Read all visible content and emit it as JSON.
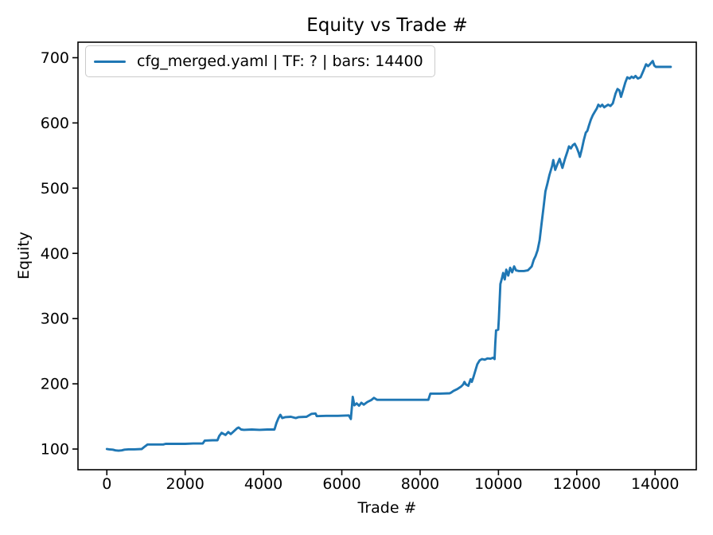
{
  "figure": {
    "background": "#ffffff",
    "axis_color": "#000000",
    "text_color": "#000000"
  },
  "chart_data": {
    "type": "line",
    "title": "Equity vs Trade #",
    "xlabel": "Trade #",
    "ylabel": "Equity",
    "xlim": [
      -737,
      15052
    ],
    "ylim": [
      68.3,
      723.8
    ],
    "xticks": [
      0,
      2000,
      4000,
      6000,
      8000,
      10000,
      12000,
      14000
    ],
    "yticks": [
      100,
      200,
      300,
      400,
      500,
      600,
      700
    ],
    "grid": false,
    "legend_position": "upper-left",
    "series": [
      {
        "name": "cfg_merged.yaml | TF: ? | bars: 14400",
        "color": "#1f77b4",
        "points": [
          [
            0,
            100
          ],
          [
            60,
            99.5
          ],
          [
            150,
            99
          ],
          [
            220,
            98
          ],
          [
            300,
            97.5
          ],
          [
            380,
            98
          ],
          [
            450,
            99
          ],
          [
            550,
            99.5
          ],
          [
            700,
            99.5
          ],
          [
            890,
            100
          ],
          [
            950,
            103
          ],
          [
            1040,
            107
          ],
          [
            1200,
            107
          ],
          [
            1440,
            107
          ],
          [
            1500,
            108
          ],
          [
            1700,
            108
          ],
          [
            2000,
            108
          ],
          [
            2200,
            108.5
          ],
          [
            2450,
            108.5
          ],
          [
            2500,
            113
          ],
          [
            2700,
            113.5
          ],
          [
            2825,
            113.5
          ],
          [
            2870,
            120
          ],
          [
            2930,
            125
          ],
          [
            3030,
            121.5
          ],
          [
            3100,
            126
          ],
          [
            3165,
            123
          ],
          [
            3230,
            126.5
          ],
          [
            3330,
            132
          ],
          [
            3365,
            133
          ],
          [
            3430,
            130
          ],
          [
            3500,
            129.5
          ],
          [
            3700,
            130
          ],
          [
            3900,
            129.5
          ],
          [
            4100,
            130
          ],
          [
            4280,
            130
          ],
          [
            4330,
            140
          ],
          [
            4380,
            147
          ],
          [
            4430,
            152.5
          ],
          [
            4480,
            147.5
          ],
          [
            4560,
            149
          ],
          [
            4700,
            149.5
          ],
          [
            4825,
            147.5
          ],
          [
            4900,
            149
          ],
          [
            5100,
            149.5
          ],
          [
            5230,
            154
          ],
          [
            5330,
            154.5
          ],
          [
            5360,
            150.5
          ],
          [
            5600,
            151
          ],
          [
            5900,
            151
          ],
          [
            6180,
            151.5
          ],
          [
            6230,
            146
          ],
          [
            6280,
            180
          ],
          [
            6320,
            167
          ],
          [
            6380,
            170
          ],
          [
            6440,
            166.5
          ],
          [
            6500,
            171
          ],
          [
            6560,
            168
          ],
          [
            6650,
            172
          ],
          [
            6750,
            175
          ],
          [
            6820,
            178.5
          ],
          [
            6900,
            175.5
          ],
          [
            7200,
            175.5
          ],
          [
            7600,
            175.5
          ],
          [
            8000,
            175.5
          ],
          [
            8210,
            175.5
          ],
          [
            8260,
            185
          ],
          [
            8500,
            185
          ],
          [
            8753,
            185.5
          ],
          [
            8790,
            186.5
          ],
          [
            8850,
            189
          ],
          [
            8950,
            192
          ],
          [
            9050,
            196
          ],
          [
            9100,
            199
          ],
          [
            9130,
            203
          ],
          [
            9170,
            199
          ],
          [
            9230,
            197
          ],
          [
            9290,
            207
          ],
          [
            9320,
            203
          ],
          [
            9360,
            210
          ],
          [
            9420,
            222
          ],
          [
            9460,
            230
          ],
          [
            9520,
            236
          ],
          [
            9580,
            238
          ],
          [
            9650,
            237
          ],
          [
            9720,
            239
          ],
          [
            9800,
            238.5
          ],
          [
            9860,
            240
          ],
          [
            9900,
            238
          ],
          [
            9920,
            262
          ],
          [
            9940,
            282
          ],
          [
            9995,
            283
          ],
          [
            10010,
            300
          ],
          [
            10050,
            353
          ],
          [
            10090,
            362
          ],
          [
            10120,
            370
          ],
          [
            10160,
            360
          ],
          [
            10200,
            375
          ],
          [
            10250,
            366
          ],
          [
            10300,
            378
          ],
          [
            10350,
            371
          ],
          [
            10400,
            380
          ],
          [
            10450,
            374
          ],
          [
            10520,
            373
          ],
          [
            10650,
            373
          ],
          [
            10750,
            374
          ],
          [
            10800,
            377
          ],
          [
            10850,
            380
          ],
          [
            10900,
            390
          ],
          [
            10950,
            396
          ],
          [
            11000,
            405
          ],
          [
            11050,
            420
          ],
          [
            11100,
            445
          ],
          [
            11150,
            470
          ],
          [
            11200,
            495
          ],
          [
            11250,
            507
          ],
          [
            11300,
            520
          ],
          [
            11370,
            534
          ],
          [
            11400,
            543
          ],
          [
            11450,
            528
          ],
          [
            11500,
            536
          ],
          [
            11560,
            545
          ],
          [
            11635,
            531
          ],
          [
            11700,
            545
          ],
          [
            11760,
            556
          ],
          [
            11800,
            564
          ],
          [
            11850,
            561
          ],
          [
            11900,
            566
          ],
          [
            11950,
            568
          ],
          [
            12000,
            562
          ],
          [
            12050,
            554
          ],
          [
            12080,
            548
          ],
          [
            12130,
            560
          ],
          [
            12180,
            574
          ],
          [
            12230,
            585
          ],
          [
            12270,
            588
          ],
          [
            12310,
            596
          ],
          [
            12360,
            605
          ],
          [
            12410,
            612
          ],
          [
            12460,
            617
          ],
          [
            12510,
            622
          ],
          [
            12550,
            628
          ],
          [
            12600,
            625
          ],
          [
            12650,
            628
          ],
          [
            12700,
            624
          ],
          [
            12750,
            626
          ],
          [
            12800,
            628
          ],
          [
            12860,
            626
          ],
          [
            12920,
            630
          ],
          [
            12990,
            645
          ],
          [
            13040,
            652
          ],
          [
            13090,
            650
          ],
          [
            13130,
            640
          ],
          [
            13190,
            652
          ],
          [
            13240,
            662
          ],
          [
            13290,
            670
          ],
          [
            13350,
            668
          ],
          [
            13400,
            671
          ],
          [
            13450,
            669
          ],
          [
            13500,
            672
          ],
          [
            13560,
            668
          ],
          [
            13630,
            670
          ],
          [
            13700,
            680
          ],
          [
            13770,
            690
          ],
          [
            13820,
            687
          ],
          [
            13870,
            690
          ],
          [
            13940,
            695
          ],
          [
            13980,
            688
          ],
          [
            14020,
            686
          ],
          [
            14150,
            686
          ],
          [
            14300,
            686
          ],
          [
            14400,
            686
          ]
        ]
      }
    ]
  }
}
